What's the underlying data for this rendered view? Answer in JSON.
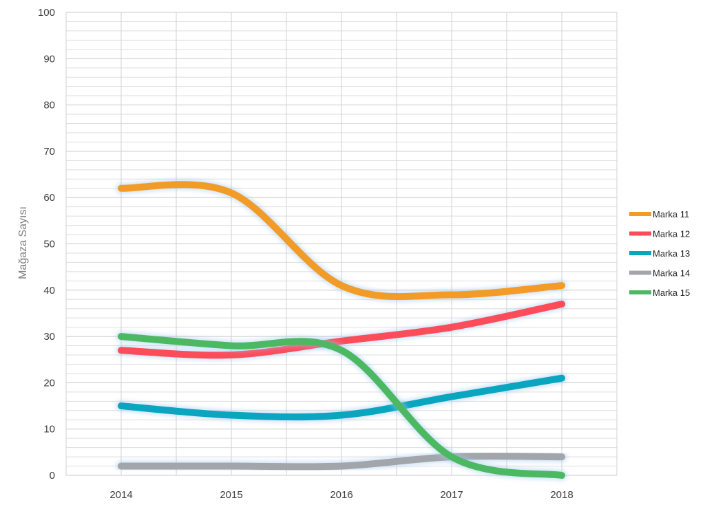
{
  "chart_data": {
    "type": "line",
    "title": "",
    "xlabel": "",
    "ylabel": "Mağaza Sayısı",
    "x": [
      "2014",
      "2015",
      "2016",
      "2017",
      "2018"
    ],
    "ylim": [
      0,
      100
    ],
    "yticks": [
      0,
      10,
      20,
      30,
      40,
      50,
      60,
      70,
      80,
      90,
      100
    ],
    "grid": true,
    "smooth": true,
    "legend_position": "right",
    "series": [
      {
        "name": "Marka 11",
        "color": "#f29b26",
        "values": [
          62,
          61,
          41,
          39,
          41
        ]
      },
      {
        "name": "Marka 12",
        "color": "#fc4c5a",
        "values": [
          27,
          26,
          29,
          32,
          37
        ]
      },
      {
        "name": "Marka 13",
        "color": "#0aa5bf",
        "values": [
          15,
          13,
          13,
          17,
          21
        ]
      },
      {
        "name": "Marka 14",
        "color": "#a2a6ab",
        "values": [
          2,
          2,
          2,
          4,
          4
        ]
      },
      {
        "name": "Marka 15",
        "color": "#4cb962",
        "values": [
          30,
          28,
          27,
          4,
          0
        ]
      }
    ]
  }
}
